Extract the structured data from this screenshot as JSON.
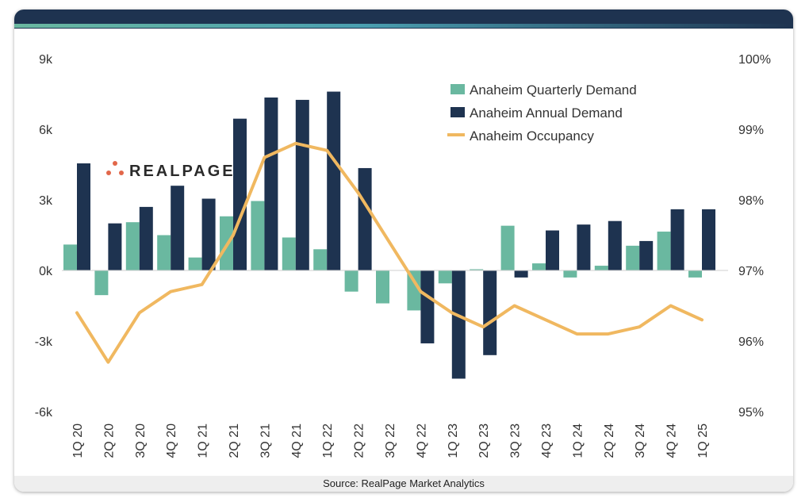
{
  "source": "Source: RealPage Market Analytics",
  "logo": {
    "text": "REALPAGE",
    "dot_color": "#e2674a"
  },
  "colors": {
    "quarterly": "#6ab8a0",
    "annual": "#1e3350",
    "occupancy": "#f0b860",
    "header": "#1e3350"
  },
  "chart_data": {
    "type": "bar",
    "categories": [
      "1Q 20",
      "2Q 20",
      "3Q 20",
      "4Q 20",
      "1Q 21",
      "2Q 21",
      "3Q 21",
      "4Q 21",
      "1Q 22",
      "2Q 22",
      "3Q 22",
      "4Q 22",
      "1Q 23",
      "2Q 23",
      "3Q 23",
      "4Q 23",
      "1Q 24",
      "2Q 24",
      "3Q 24",
      "4Q 24",
      "1Q 25"
    ],
    "series": [
      {
        "name": "Anaheim Quarterly Demand",
        "type": "bar",
        "values": [
          1100,
          -1050,
          2050,
          1500,
          550,
          2300,
          2950,
          1400,
          900,
          -900,
          -1400,
          -1700,
          -550,
          50,
          1900,
          300,
          -300,
          200,
          1050,
          1650,
          -300
        ]
      },
      {
        "name": "Anaheim Annual Demand",
        "type": "bar",
        "values": [
          4550,
          2000,
          2700,
          3600,
          3050,
          6450,
          7350,
          7250,
          7600,
          4350,
          null,
          -3100,
          -4600,
          -3600,
          -300,
          1700,
          1950,
          2100,
          1250,
          2600,
          2600
        ]
      },
      {
        "name": "Anaheim Occupancy",
        "type": "line",
        "axis": "right",
        "values": [
          96.4,
          95.7,
          96.4,
          96.7,
          96.8,
          97.5,
          98.6,
          98.8,
          98.7,
          98.1,
          97.4,
          96.7,
          96.4,
          96.2,
          96.5,
          96.3,
          96.1,
          96.1,
          96.2,
          96.5,
          96.3
        ]
      }
    ],
    "y_left": {
      "ylim": [
        -6000,
        9000
      ],
      "ticks": [
        -6000,
        -3000,
        0,
        3000,
        6000,
        9000
      ],
      "tick_labels": [
        "-6k",
        "-3k",
        "0k",
        "3k",
        "6k",
        "9k"
      ]
    },
    "y_right": {
      "ylim": [
        95,
        100
      ],
      "ticks": [
        95,
        96,
        97,
        98,
        99,
        100
      ],
      "tick_labels": [
        "95%",
        "96%",
        "97%",
        "98%",
        "99%",
        "100%"
      ]
    },
    "legend": "top-right",
    "grid": false
  }
}
